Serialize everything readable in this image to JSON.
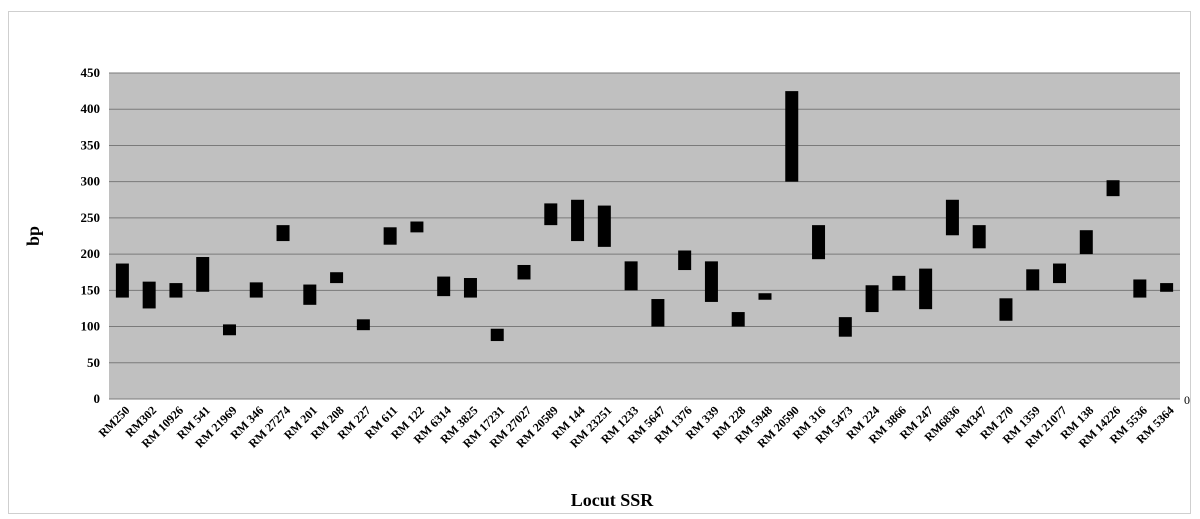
{
  "chart_data": {
    "type": "bar",
    "subtype": "floating range bars",
    "xlabel": "Locut SSR",
    "ylabel": "bp",
    "ylim": [
      0,
      450
    ],
    "y_ticks": [
      "0",
      "50",
      "100",
      "150",
      "200",
      "250",
      "300",
      "350",
      "400",
      "450"
    ],
    "grid": true,
    "legend": "none",
    "stray_label": "0",
    "colors": {
      "plot_background": "#c0c0c0",
      "bar": "#000000",
      "grid": "#7a7a7a"
    },
    "categories": [
      "RM250",
      "RM302",
      "RM 10926",
      "RM 541",
      "RM 21969",
      "RM 346",
      "RM 27274",
      "RM 201",
      "RM 208",
      "RM 227",
      "RM 611",
      "RM 122",
      "RM 6314",
      "RM 3825",
      "RM 17231",
      "RM 27027",
      "RM 20589",
      "RM 144",
      "RM 23251",
      "RM 1233",
      "RM 5647",
      "RM 1376",
      "RM 339",
      "RM 228",
      "RM 5948",
      "RM 20590",
      "RM 316",
      "RM 5473",
      "RM 224",
      "RM 3866",
      "RM 247",
      "RM6836",
      "RM347",
      "RM 270",
      "RM 1359",
      "RM 21077",
      "RM 138",
      "RM 14226",
      "RM 5536",
      "RM 5364"
    ],
    "ranges": [
      [
        140,
        187
      ],
      [
        125,
        162
      ],
      [
        140,
        160
      ],
      [
        148,
        196
      ],
      [
        88,
        103
      ],
      [
        140,
        161
      ],
      [
        218,
        240
      ],
      [
        130,
        158
      ],
      [
        160,
        175
      ],
      [
        95,
        110
      ],
      [
        213,
        237
      ],
      [
        230,
        245
      ],
      [
        142,
        169
      ],
      [
        140,
        167
      ],
      [
        80,
        97
      ],
      [
        165,
        185
      ],
      [
        240,
        270
      ],
      [
        218,
        275
      ],
      [
        210,
        267
      ],
      [
        150,
        190
      ],
      [
        100,
        138
      ],
      [
        178,
        205
      ],
      [
        134,
        190
      ],
      [
        100,
        120
      ],
      [
        137,
        146
      ],
      [
        300,
        425
      ],
      [
        193,
        240
      ],
      [
        86,
        113
      ],
      [
        120,
        157
      ],
      [
        150,
        170
      ],
      [
        124,
        180
      ],
      [
        226,
        275
      ],
      [
        208,
        240
      ],
      [
        108,
        139
      ],
      [
        150,
        179
      ],
      [
        160,
        187
      ],
      [
        200,
        233
      ],
      [
        280,
        302
      ],
      [
        140,
        165
      ],
      [
        148,
        160
      ]
    ]
  }
}
